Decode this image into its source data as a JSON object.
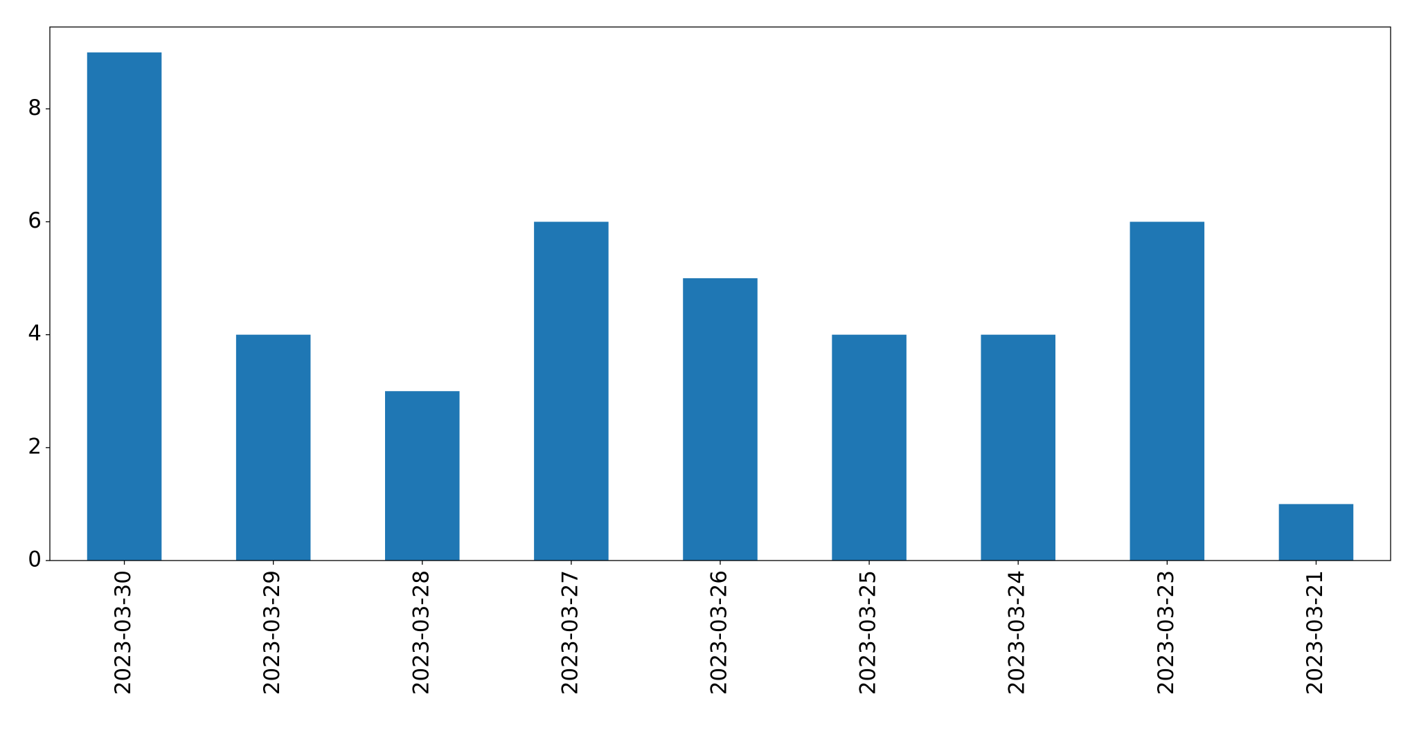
{
  "chart_data": {
    "type": "bar",
    "categories": [
      "2023-03-30",
      "2023-03-29",
      "2023-03-28",
      "2023-03-27",
      "2023-03-26",
      "2023-03-25",
      "2023-03-24",
      "2023-03-23",
      "2023-03-21"
    ],
    "values": [
      9,
      4,
      3,
      6,
      5,
      4,
      4,
      6,
      1
    ],
    "color": "#1f77b4",
    "ylim": [
      0,
      9.45
    ],
    "yticks": [
      0,
      2,
      4,
      6,
      8
    ],
    "grid": false
  }
}
